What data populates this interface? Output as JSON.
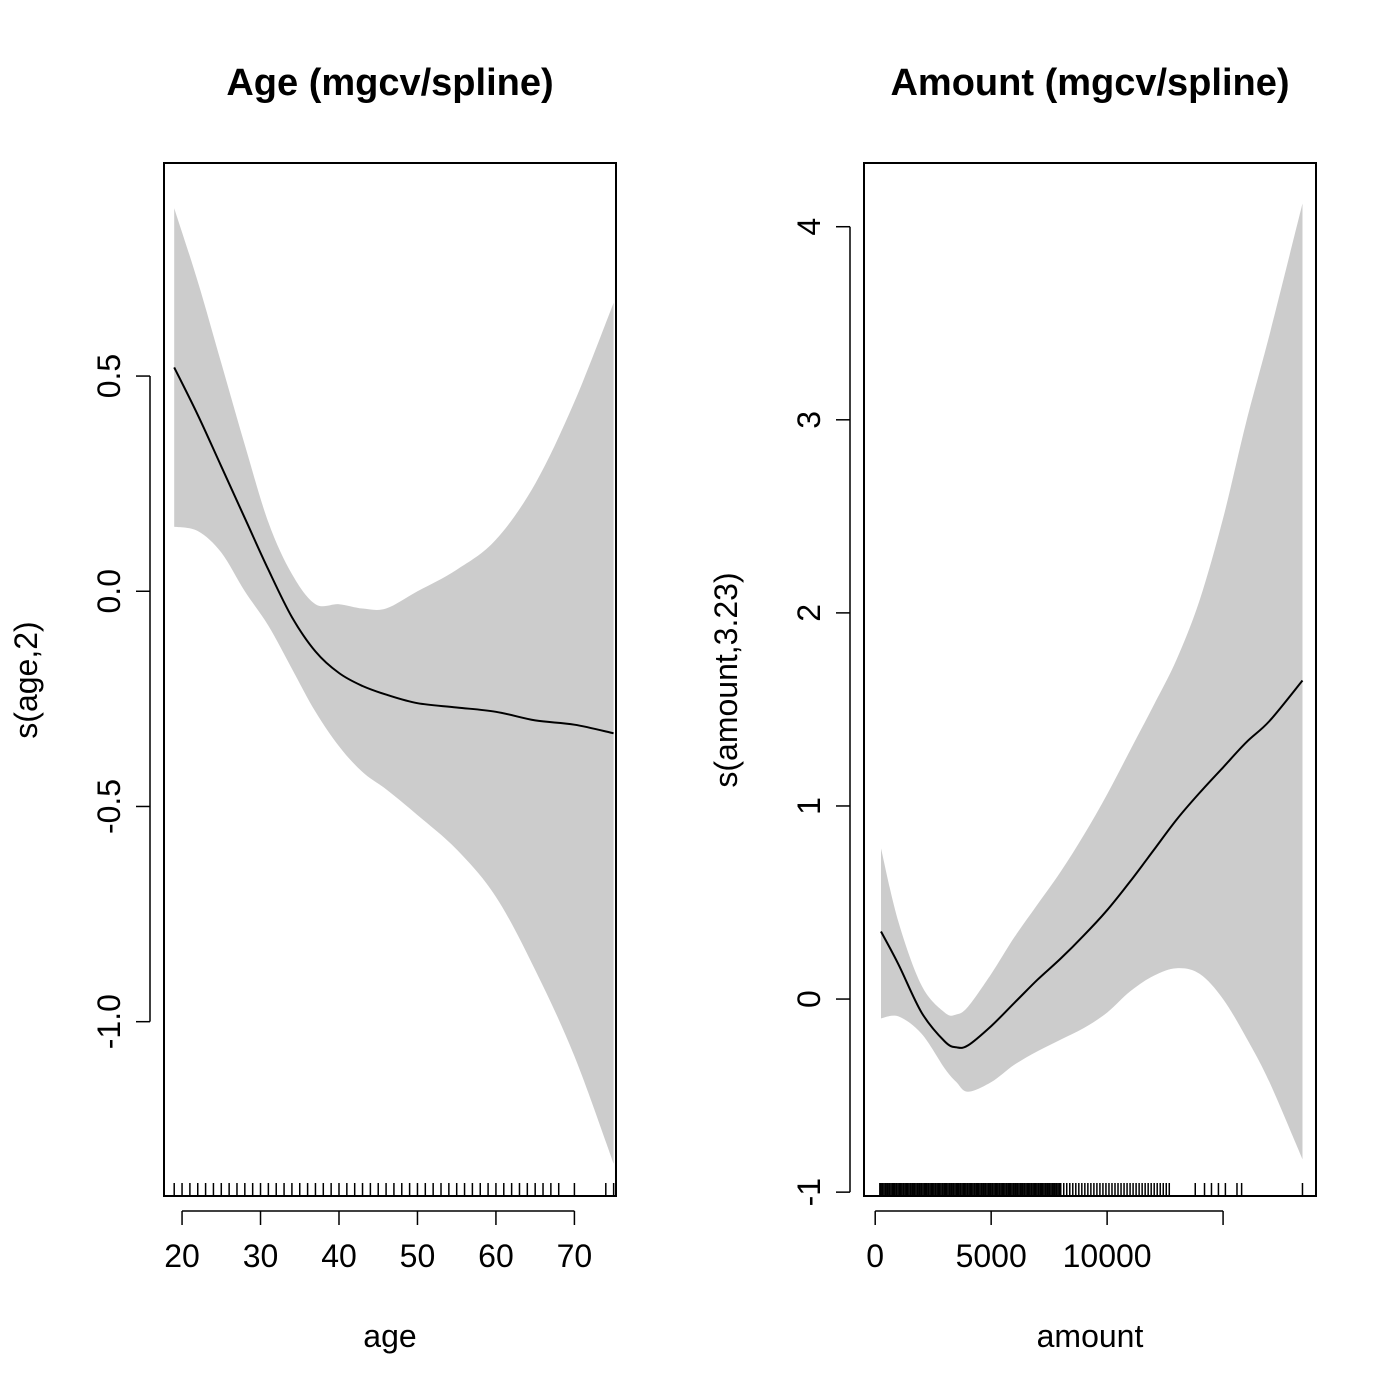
{
  "colors": {
    "band": "#cccccc",
    "line": "#000000"
  },
  "chart_data": [
    {
      "type": "line",
      "title": "Age (mgcv/spline)",
      "xlabel": "age",
      "ylabel": "s(age,2)",
      "xlim": [
        17.7,
        75.3
      ],
      "ylim": [
        -1.405,
        0.995
      ],
      "xticks": [
        20,
        30,
        40,
        50,
        60,
        70
      ],
      "xtick_labels": [
        "20",
        "30",
        "40",
        "50",
        "60",
        "70"
      ],
      "yticks": [
        -1.0,
        -0.5,
        0.0,
        0.5
      ],
      "ytick_labels": [
        "-1.0",
        "-0.5",
        "0.0",
        "0.5"
      ],
      "x": [
        19,
        22,
        25,
        28,
        31,
        34,
        37,
        40,
        43,
        46,
        50,
        55,
        60,
        65,
        70,
        75
      ],
      "fit": [
        0.52,
        0.41,
        0.29,
        0.17,
        0.05,
        -0.06,
        -0.14,
        -0.19,
        -0.22,
        -0.24,
        -0.26,
        -0.27,
        -0.28,
        -0.3,
        -0.31,
        -0.33
      ],
      "upper": [
        0.89,
        0.72,
        0.53,
        0.34,
        0.16,
        0.04,
        -0.03,
        -0.03,
        -0.04,
        -0.04,
        0.0,
        0.05,
        0.12,
        0.25,
        0.44,
        0.67
      ],
      "lower": [
        0.15,
        0.14,
        0.09,
        0.0,
        -0.08,
        -0.18,
        -0.28,
        -0.36,
        -0.42,
        -0.46,
        -0.52,
        -0.6,
        -0.71,
        -0.88,
        -1.08,
        -1.33
      ],
      "rug": [
        19,
        20,
        21,
        22,
        23,
        24,
        25,
        26,
        27,
        28,
        29,
        30,
        31,
        32,
        33,
        34,
        35,
        36,
        37,
        38,
        39,
        40,
        41,
        42,
        43,
        44,
        45,
        46,
        47,
        48,
        49,
        50,
        51,
        52,
        53,
        54,
        55,
        56,
        57,
        58,
        59,
        60,
        61,
        62,
        63,
        64,
        65,
        66,
        67,
        68,
        70,
        74,
        75
      ],
      "grid": false
    },
    {
      "type": "line",
      "title": "Amount (mgcv/spline)",
      "xlabel": "amount",
      "ylabel": "s(amount,3.23)",
      "xlim": [
        -483,
        19007
      ],
      "ylim": [
        -1.02,
        4.33
      ],
      "xticks": [
        0,
        5000,
        10000,
        15000
      ],
      "xtick_labels": [
        "0",
        "5000",
        "10000",
        ""
      ],
      "yticks": [
        -1,
        0,
        1,
        2,
        3,
        4
      ],
      "ytick_labels": [
        "-1",
        "0",
        "1",
        "2",
        "3",
        "4"
      ],
      "x": [
        250,
        1000,
        2000,
        3000,
        3500,
        4000,
        5000,
        6000,
        7000,
        8000,
        9000,
        10000,
        11000,
        12000,
        13000,
        14000,
        15000,
        16000,
        17000,
        18424
      ],
      "fit": [
        0.35,
        0.18,
        -0.07,
        -0.22,
        -0.25,
        -0.24,
        -0.14,
        -0.02,
        0.1,
        0.21,
        0.33,
        0.46,
        0.61,
        0.77,
        0.93,
        1.07,
        1.2,
        1.33,
        1.44,
        1.65
      ],
      "upper": [
        0.78,
        0.4,
        0.07,
        -0.07,
        -0.08,
        -0.04,
        0.13,
        0.32,
        0.49,
        0.66,
        0.85,
        1.06,
        1.29,
        1.52,
        1.76,
        2.07,
        2.49,
        2.99,
        3.44,
        4.12
      ],
      "lower": [
        -0.1,
        -0.09,
        -0.18,
        -0.36,
        -0.43,
        -0.48,
        -0.43,
        -0.34,
        -0.27,
        -0.21,
        -0.15,
        -0.07,
        0.04,
        0.12,
        0.16,
        0.13,
        0.0,
        -0.2,
        -0.43,
        -0.83
      ],
      "rug_dense_range": [
        200,
        12700
      ],
      "rug": [
        13800,
        14200,
        14500,
        14800,
        15100,
        15600,
        15800,
        18424
      ],
      "grid": false
    }
  ]
}
